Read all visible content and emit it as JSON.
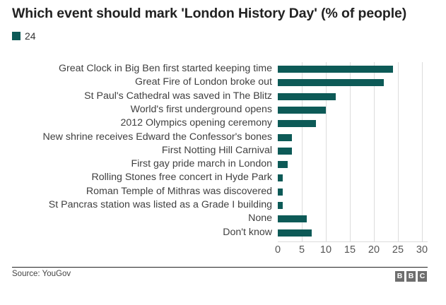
{
  "header": {
    "title": "Which event should mark 'London History Day' (% of people)",
    "legend_label": "24",
    "legend_color": "#0d5a57"
  },
  "footer": {
    "source": "Source: YouGov",
    "logo": [
      "B",
      "B",
      "C"
    ]
  },
  "chart_data": {
    "type": "bar",
    "orientation": "horizontal",
    "title": "Which event should mark 'London History Day' (% of people)",
    "xlabel": "",
    "ylabel": "",
    "xlim": [
      0,
      30
    ],
    "xticks": [
      "0",
      "5",
      "10",
      "15",
      "20",
      "25",
      "30"
    ],
    "grid": true,
    "legend": {
      "position": "top-left",
      "entries": [
        "24"
      ]
    },
    "bar_color": "#0d5a57",
    "categories": [
      "Great Clock in Big Ben first started keeping time",
      "Great Fire of London broke out",
      "St Paul's Cathedral was saved in The Blitz",
      "World's first underground opens",
      "2012 Olympics opening ceremony",
      "New shrine receives Edward the Confessor's bones",
      "First Notting Hill Carnival",
      "First gay pride march in London",
      "Rolling Stones free concert in Hyde Park",
      "Roman Temple of Mithras was discovered",
      "St Pancras station was listed as a Grade I building",
      "None",
      "Don't know"
    ],
    "series": [
      {
        "name": "24",
        "values": [
          24,
          22,
          12,
          10,
          8,
          3,
          3,
          2,
          1,
          1,
          1,
          6,
          7
        ]
      }
    ],
    "source": "Source: YouGov"
  }
}
